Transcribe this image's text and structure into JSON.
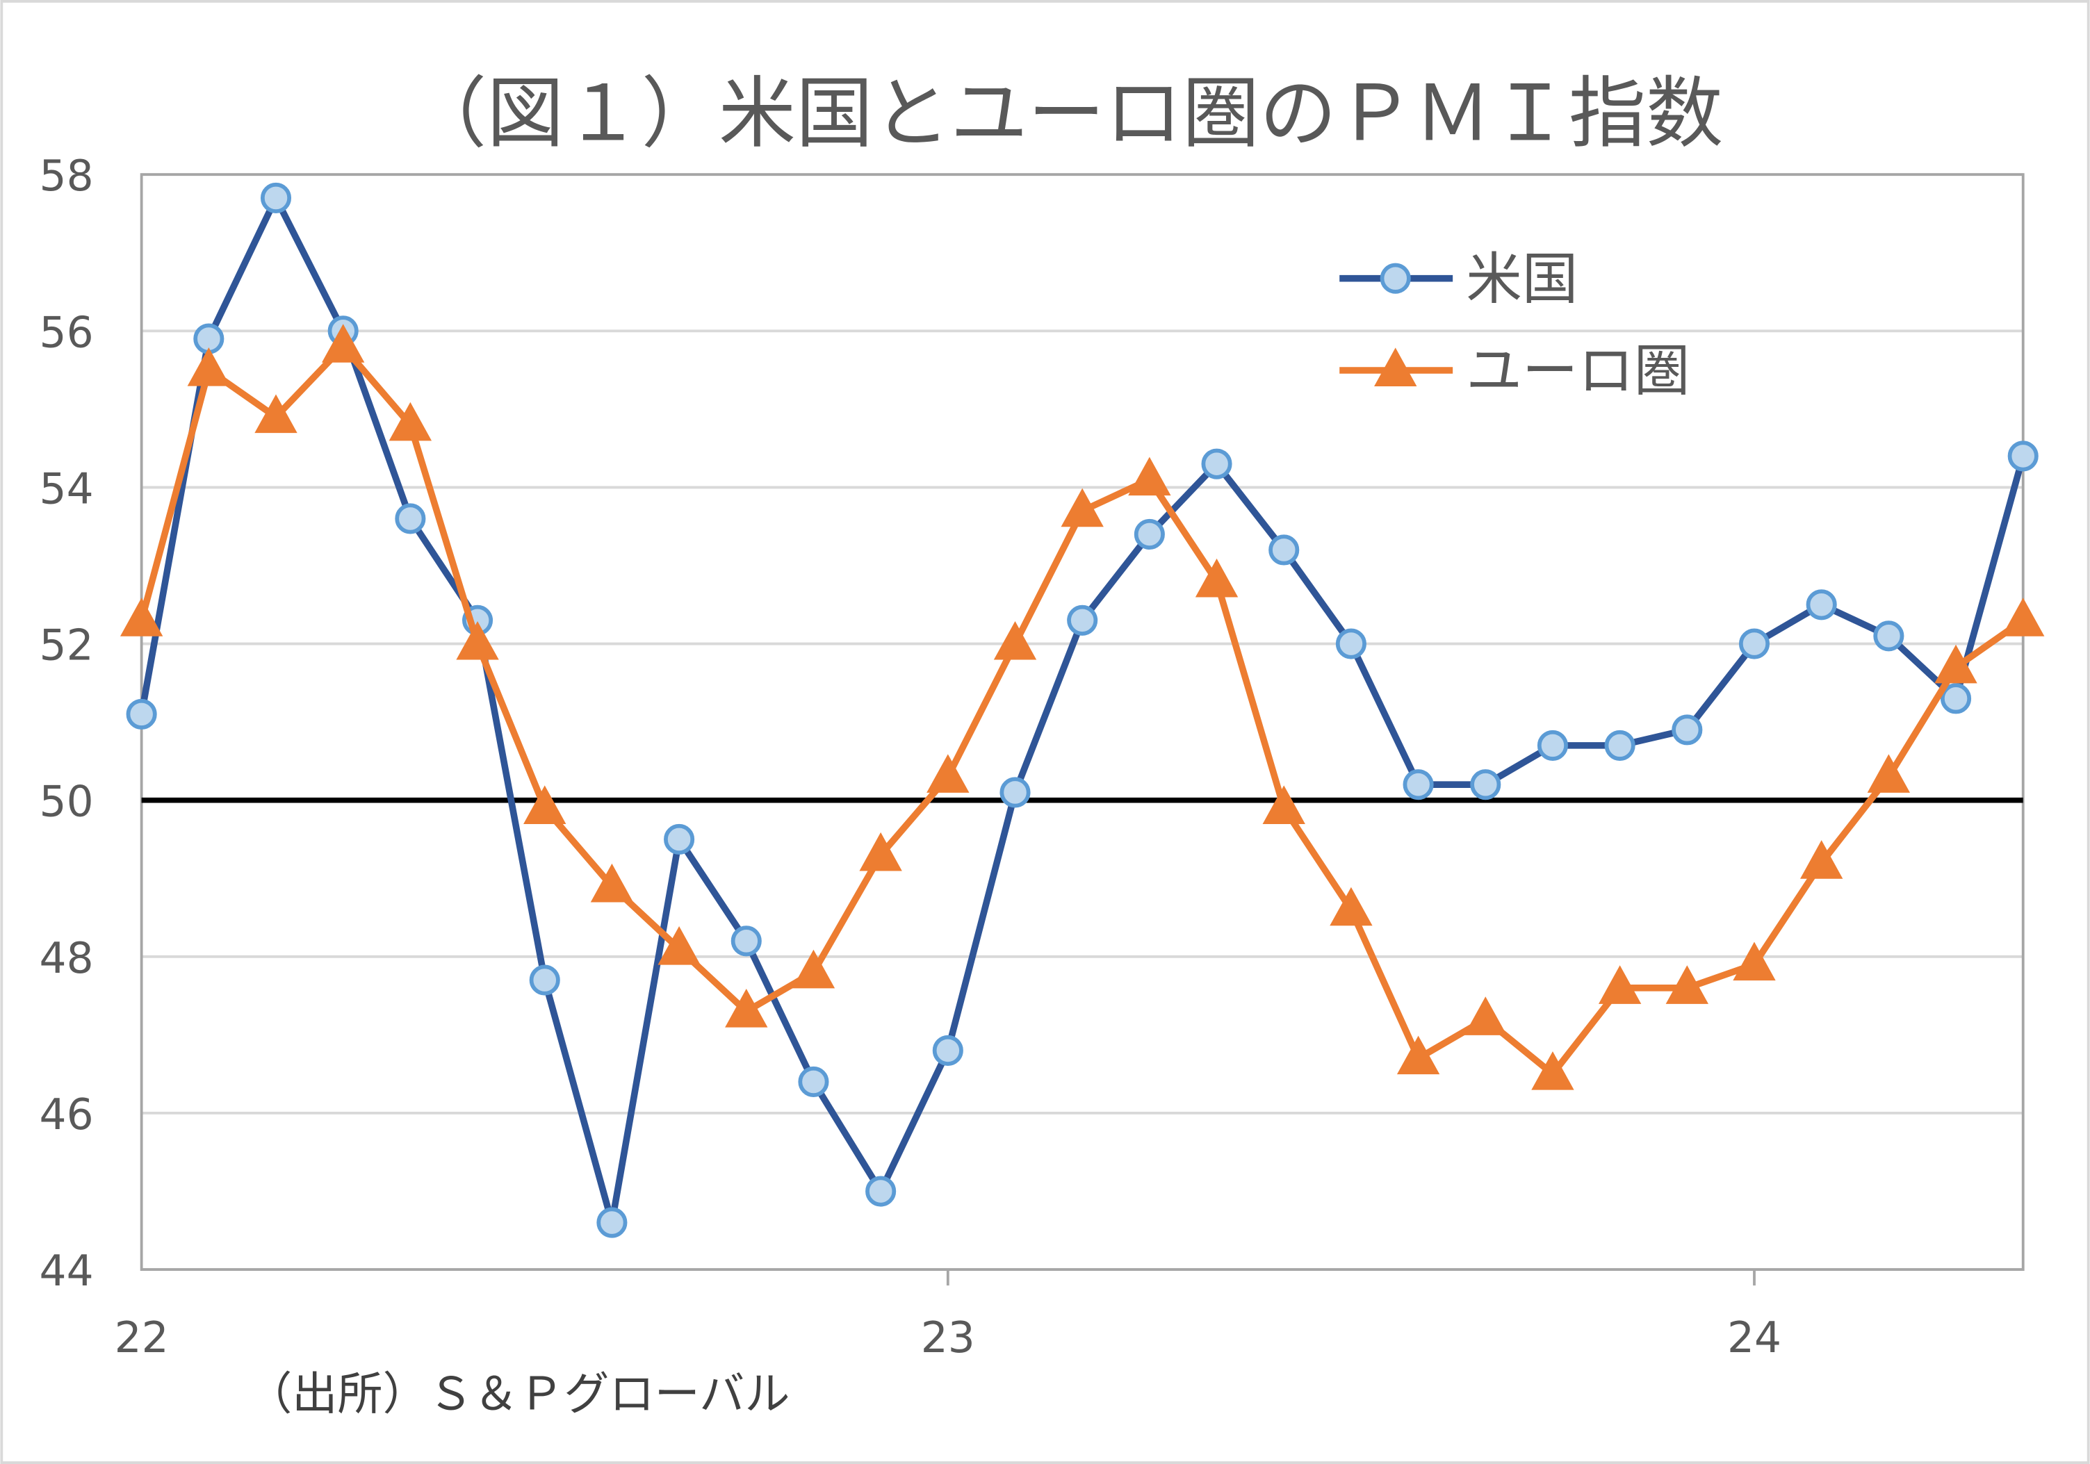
{
  "chart_data": {
    "type": "line",
    "title": "（図１）米国とユーロ圏のＰＭＩ指数",
    "xlabel": "",
    "ylabel": "",
    "source_note": "（出所）Ｓ＆Ｐグローバル",
    "ylim": [
      44,
      58
    ],
    "yticks": [
      "44",
      "46",
      "48",
      "50",
      "52",
      "54",
      "56",
      "58"
    ],
    "xtick_labels": [
      "22",
      "23",
      "24"
    ],
    "x": [
      "22-01",
      "22-02",
      "22-03",
      "22-04",
      "22-05",
      "22-06",
      "22-07",
      "22-08",
      "22-09",
      "22-10",
      "22-11",
      "22-12",
      "23-01",
      "23-02",
      "23-03",
      "23-04",
      "23-05",
      "23-06",
      "23-07",
      "23-08",
      "23-09",
      "23-10",
      "23-11",
      "23-12",
      "24-01",
      "24-02",
      "24-03",
      "24-04",
      "24-05"
    ],
    "reference_line": 50,
    "grid": true,
    "legend_position": "top-right",
    "series": [
      {
        "name": "米国",
        "color": "#2F5597",
        "marker": "circle",
        "marker_fill": "#BDD7EE",
        "marker_stroke": "#5B9BD5",
        "values": [
          51.1,
          55.9,
          57.7,
          56.0,
          53.6,
          52.3,
          47.7,
          44.6,
          49.5,
          48.2,
          46.4,
          45.0,
          46.8,
          50.1,
          52.3,
          53.4,
          54.3,
          53.2,
          52.0,
          50.2,
          50.2,
          50.7,
          50.7,
          50.9,
          52.0,
          52.5,
          52.1,
          51.3,
          54.4
        ]
      },
      {
        "name": "ユーロ圏",
        "color": "#ED7D31",
        "marker": "triangle",
        "values": [
          52.3,
          55.5,
          54.9,
          55.8,
          54.8,
          52.0,
          49.9,
          48.9,
          48.1,
          47.3,
          47.8,
          49.3,
          50.3,
          52.0,
          53.7,
          54.1,
          52.8,
          49.9,
          48.6,
          46.7,
          47.2,
          46.5,
          47.6,
          47.6,
          47.9,
          49.2,
          50.3,
          51.7,
          52.3
        ]
      }
    ]
  }
}
